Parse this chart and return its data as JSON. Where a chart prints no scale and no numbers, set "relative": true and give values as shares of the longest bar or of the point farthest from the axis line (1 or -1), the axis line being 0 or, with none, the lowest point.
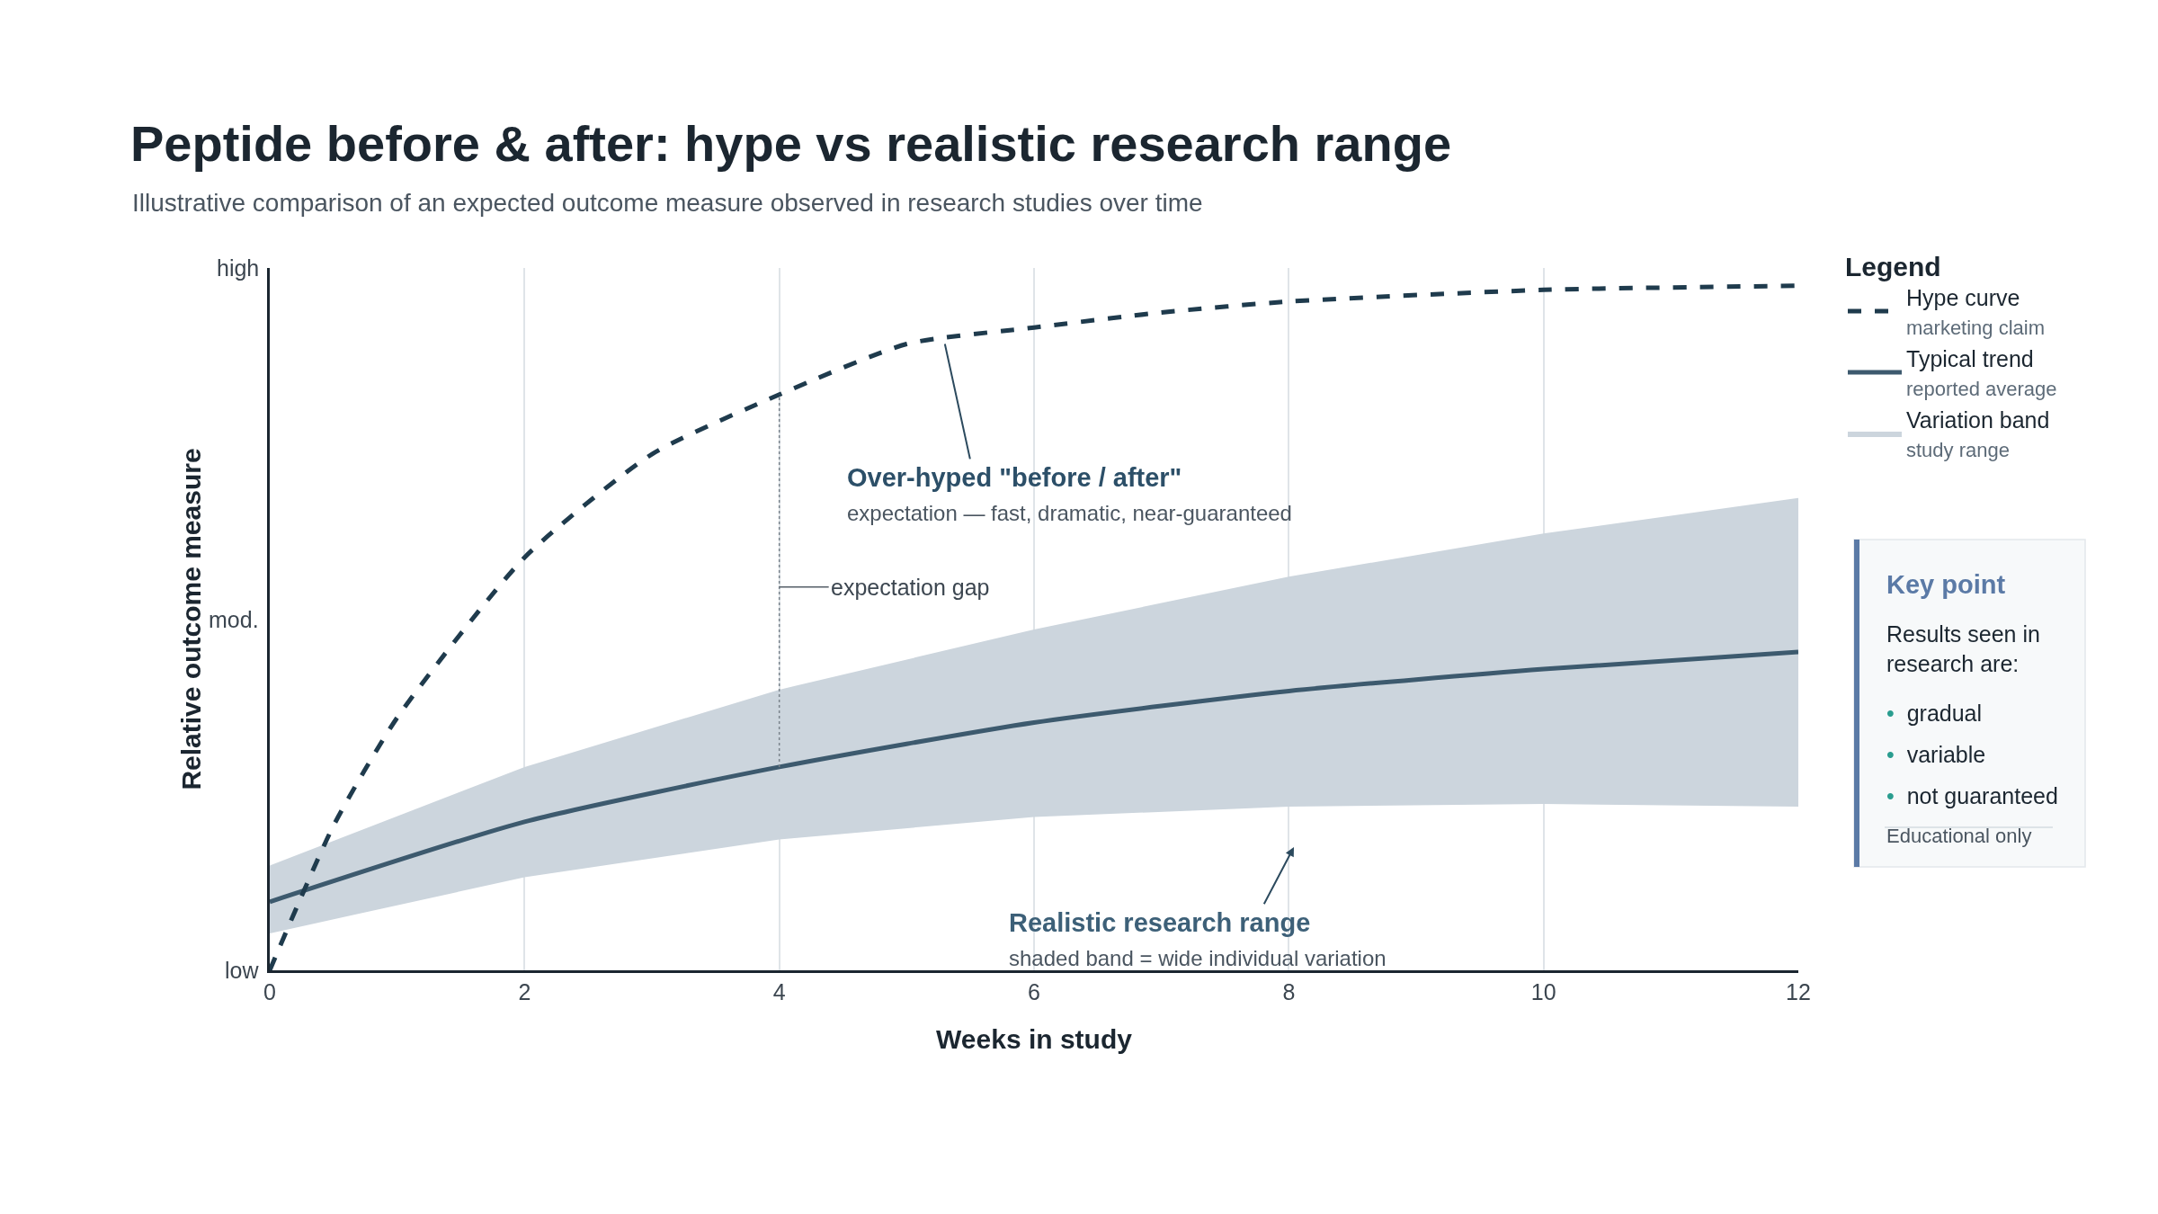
{
  "chart_data": {
    "type": "line",
    "relative": true,
    "title": "Peptide before & after: hype vs realistic research range",
    "subtitle": "Illustrative comparison of an expected outcome measure observed in research studies over time",
    "xlabel": "Weeks in study",
    "ylabel": "Relative outcome measure",
    "legend_title": "Legend",
    "x": [
      0,
      2,
      4,
      6,
      8,
      10,
      12
    ],
    "series": [
      {
        "name": "Hype curve",
        "color": "#1f3b4d",
        "line_style": "dashed",
        "x": [
          0,
          0.5,
          1,
          2,
          3,
          4,
          5,
          6,
          7,
          8,
          10,
          12
        ],
        "values": [
          0,
          0.211,
          0.369,
          0.603,
          0.754,
          0.841,
          0.915,
          0.939,
          0.961,
          0.977,
          0.994,
          1
        ]
      },
      {
        "name": "Typical trend",
        "color": "#3d5a6e",
        "line_style": "solid",
        "values": [
          0.1,
          0.217,
          0.297,
          0.362,
          0.408,
          0.44,
          0.465
        ],
        "lower": [
          0.054,
          0.136,
          0.191,
          0.224,
          0.239,
          0.243,
          0.239
        ],
        "upper": [
          0.153,
          0.297,
          0.41,
          0.498,
          0.575,
          0.638,
          0.69
        ]
      },
      {
        "color": "#7a848c",
        "line_style": "dotted",
        "x": [
          4,
          4
        ],
        "values": [
          0.297,
          0.841
        ]
      }
    ],
    "annotations": [
      "marketing claim",
      "reported average",
      "Variation band",
      "study range",
      "Over-hyped \"before / after\"\nexpectation — fast, dramatic, near-guaranteed",
      "expectation gap",
      "Realistic research range\nshaded band = wide individual variation",
      "Key point",
      "Results seen in research are:",
      "• gradual",
      "• variable",
      "• not guaranteed",
      "Educational only",
      "low",
      "mod.",
      "high"
    ],
    "xlim": [
      0,
      12
    ],
    "xticks": [
      0,
      2,
      4,
      6,
      8,
      10,
      12
    ],
    "grid": "x",
    "legend": "top right"
  }
}
